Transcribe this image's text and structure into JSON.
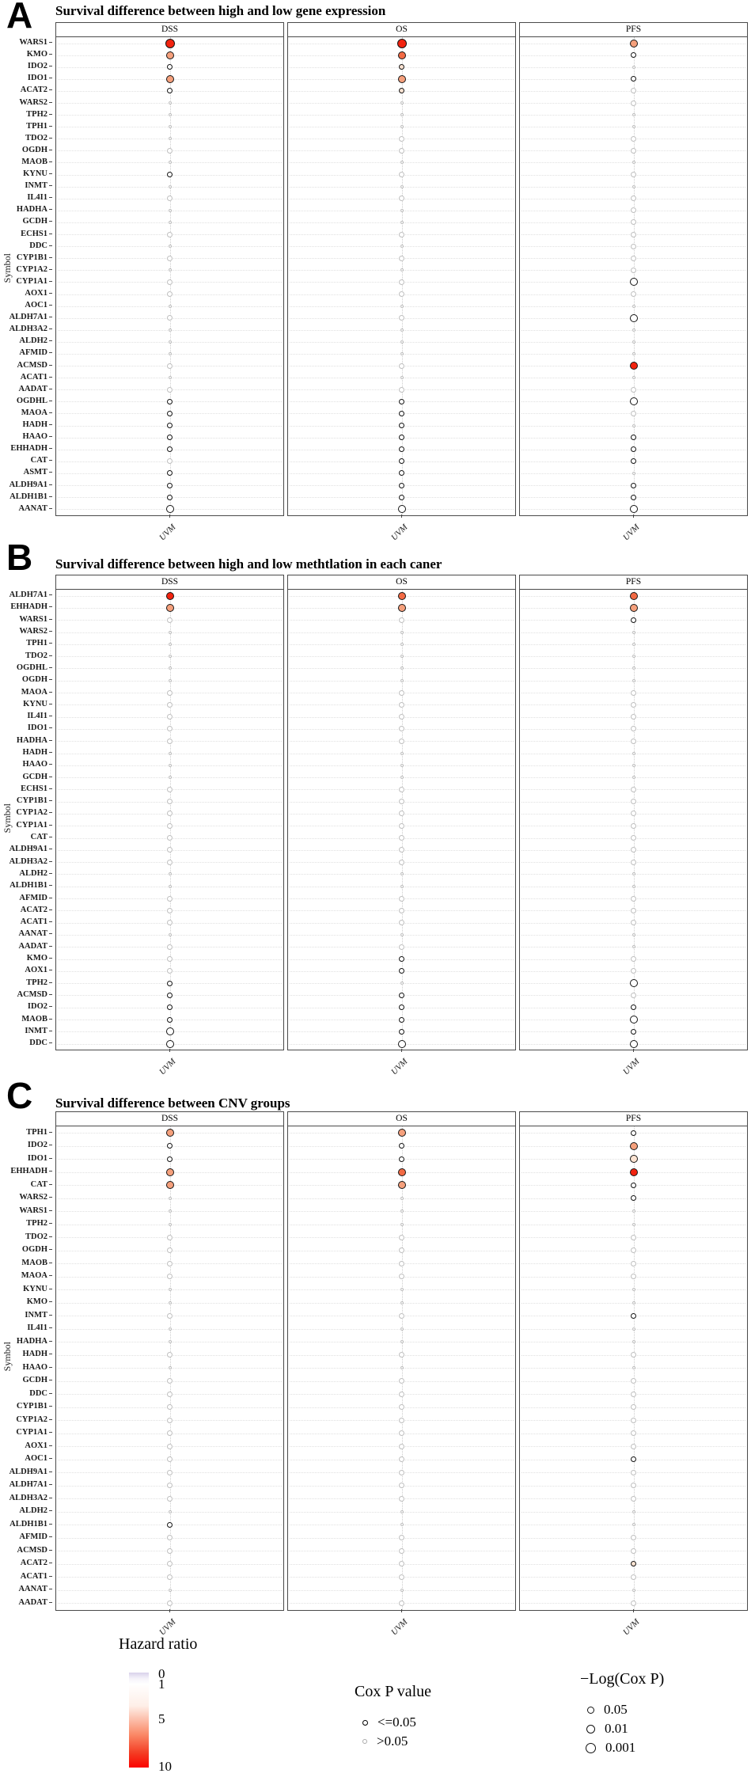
{
  "figure": {
    "palette": {
      "rd": "#F2230F",
      "or": "#F26A44",
      "sa": "#F5A07C",
      "pk": "#FBE3D2",
      "w": "#FFFFFF",
      "ns": "#BFBFBF"
    },
    "size_levels": [
      4,
      7,
      10,
      12
    ],
    "legends": {
      "hazard_ratio": {
        "title": "Hazard ratio",
        "ticks": [
          "0",
          "1",
          "5",
          "10"
        ],
        "gradient_top": "#D9D2EB",
        "gradient_mid": "#FFFFFF",
        "gradient_bottom": "#FB0300"
      },
      "cox_p": {
        "title": "Cox P value",
        "items": [
          {
            "label": "<=0.05",
            "color": "#000000"
          },
          {
            "label": ">0.05",
            "color": "#AAAAAA"
          }
        ]
      },
      "log_cox_p": {
        "title": "−Log(Cox P)",
        "items": [
          {
            "label": "0.05"
          },
          {
            "label": "0.01"
          },
          {
            "label": "0.001"
          }
        ]
      }
    }
  },
  "chart_data": [
    {
      "type": "scatter",
      "panel": "A",
      "title": "Survival difference between high and low gene expression",
      "ylabel": "Symbol",
      "x_ticks": [
        "UVM"
      ],
      "facets": [
        "DSS",
        "OS",
        "PFS"
      ],
      "legend_note": "dot size = -Log(Cox P); dot color = hazard ratio (red high); gray = Cox P > 0.05",
      "genes": [
        "WARS1",
        "KMO",
        "IDO2",
        "IDO1",
        "ACAT2",
        "WARS2",
        "TPH2",
        "TPH1",
        "TDO2",
        "OGDH",
        "MAOB",
        "KYNU",
        "INMT",
        "IL4I1",
        "HADHA",
        "GCDH",
        "ECHS1",
        "DDC",
        "CYP1B1",
        "CYP1A2",
        "CYP1A1",
        "AOX1",
        "AOC1",
        "ALDH7A1",
        "ALDH3A2",
        "ALDH2",
        "AFMID",
        "ACMSD",
        "ACAT1",
        "AADAT",
        "OGDHL",
        "MAOA",
        "HADH",
        "HAAO",
        "EHHADH",
        "CAT",
        "ASMT",
        "ALDH9A1",
        "ALDH1B1",
        "AANAT"
      ],
      "dots": {
        "DSS": [
          "3rd",
          "2sa",
          "1w",
          "2sa",
          "1w",
          "0ns",
          "0ns",
          "0ns",
          "0ns",
          "1ns",
          "0ns",
          "1w",
          "0ns",
          "1ns",
          "0ns",
          "0ns",
          "1ns",
          "0ns",
          "1ns",
          "0ns",
          "1ns",
          "1ns",
          "0ns",
          "1ns",
          "0ns",
          "0ns",
          "0ns",
          "1ns",
          "0ns",
          "1ns",
          "1w",
          "1w",
          "1w",
          "1w",
          "1w",
          "1ns",
          "1w",
          "1w",
          "1w",
          "2w"
        ],
        "OS": [
          "3rd",
          "2or",
          "1pk",
          "2sa",
          "1pk",
          "0ns",
          "0ns",
          "0ns",
          "1ns",
          "1ns",
          "0ns",
          "1ns",
          "0ns",
          "1ns",
          "0ns",
          "0ns",
          "1ns",
          "0ns",
          "1ns",
          "0ns",
          "1ns",
          "1ns",
          "0ns",
          "1ns",
          "0ns",
          "0ns",
          "0ns",
          "1ns",
          "0ns",
          "1ns",
          "1w",
          "1w",
          "1w",
          "1w",
          "1w",
          "1w",
          "1w",
          "1w",
          "1w",
          "2w"
        ],
        "PFS": [
          "2sa",
          "1w",
          "0ns",
          "1w",
          "1ns",
          "1ns",
          "0ns",
          "0ns",
          "1ns",
          "1ns",
          "0ns",
          "1ns",
          "0ns",
          "1ns",
          "1ns",
          "1ns",
          "1ns",
          "1ns",
          "1ns",
          "1ns",
          "2w",
          "1ns",
          "0ns",
          "2w",
          "0ns",
          "0ns",
          "0ns",
          "2rd",
          "0ns",
          "1ns",
          "2w",
          "1ns",
          "0ns",
          "1w",
          "1w",
          "1w",
          "0ns",
          "1w",
          "1w",
          "2w"
        ]
      }
    },
    {
      "type": "scatter",
      "panel": "B",
      "title": "Survival difference between high and low methtlation in each caner",
      "ylabel": "Symbol",
      "x_ticks": [
        "UVM"
      ],
      "facets": [
        "DSS",
        "OS",
        "PFS"
      ],
      "genes": [
        "ALDH7A1",
        "EHHADH",
        "WARS1",
        "WARS2",
        "TPH1",
        "TDO2",
        "OGDHL",
        "OGDH",
        "MAOA",
        "KYNU",
        "IL4I1",
        "IDO1",
        "HADHA",
        "HADH",
        "HAAO",
        "GCDH",
        "ECHS1",
        "CYP1B1",
        "CYP1A2",
        "CYP1A1",
        "CAT",
        "ALDH9A1",
        "ALDH3A2",
        "ALDH2",
        "ALDH1B1",
        "AFMID",
        "ACAT2",
        "ACAT1",
        "AANAT",
        "AADAT",
        "KMO",
        "AOX1",
        "TPH2",
        "ACMSD",
        "IDO2",
        "MAOB",
        "INMT",
        "DDC"
      ],
      "dots": {
        "DSS": [
          "2rd",
          "2sa",
          "1ns",
          "0ns",
          "0ns",
          "0ns",
          "0ns",
          "0ns",
          "1ns",
          "1ns",
          "1ns",
          "1ns",
          "1ns",
          "0ns",
          "0ns",
          "0ns",
          "1ns",
          "1ns",
          "1ns",
          "1ns",
          "1ns",
          "1ns",
          "1ns",
          "0ns",
          "0ns",
          "1ns",
          "1ns",
          "1ns",
          "0ns",
          "1ns",
          "1ns",
          "1ns",
          "1w",
          "1w",
          "1w",
          "1w",
          "2w",
          "2w"
        ],
        "OS": [
          "2or",
          "2sa",
          "1ns",
          "0ns",
          "0ns",
          "0ns",
          "0ns",
          "0ns",
          "1ns",
          "1ns",
          "1ns",
          "1ns",
          "1ns",
          "0ns",
          "0ns",
          "0ns",
          "1ns",
          "1ns",
          "1ns",
          "1ns",
          "1ns",
          "1ns",
          "1ns",
          "0ns",
          "0ns",
          "1ns",
          "1ns",
          "1ns",
          "0ns",
          "1ns",
          "1w",
          "1w",
          "0ns",
          "1w",
          "1w",
          "1w",
          "1w",
          "2w"
        ],
        "PFS": [
          "2or",
          "2sa",
          "1w",
          "0ns",
          "0ns",
          "0ns",
          "0ns",
          "0ns",
          "1ns",
          "1ns",
          "1ns",
          "1ns",
          "1ns",
          "0ns",
          "0ns",
          "0ns",
          "1ns",
          "1ns",
          "1ns",
          "1ns",
          "1ns",
          "1ns",
          "1ns",
          "0ns",
          "0ns",
          "1ns",
          "1ns",
          "1ns",
          "0ns",
          "0ns",
          "1ns",
          "1ns",
          "2w",
          "1ns",
          "1w",
          "2w",
          "1w",
          "2w"
        ]
      }
    },
    {
      "type": "scatter",
      "panel": "C",
      "title": "Survival difference between CNV groups",
      "ylabel": "Symbol",
      "x_ticks": [
        "UVM"
      ],
      "facets": [
        "DSS",
        "OS",
        "PFS"
      ],
      "genes": [
        "TPH1",
        "IDO2",
        "IDO1",
        "EHHADH",
        "CAT",
        "WARS2",
        "WARS1",
        "TPH2",
        "TDO2",
        "OGDH",
        "MAOB",
        "MAOA",
        "KYNU",
        "KMO",
        "INMT",
        "IL4I1",
        "HADHA",
        "HADH",
        "HAAO",
        "GCDH",
        "DDC",
        "CYP1B1",
        "CYP1A2",
        "CYP1A1",
        "AOX1",
        "AOC1",
        "ALDH9A1",
        "ALDH7A1",
        "ALDH3A2",
        "ALDH2",
        "ALDH1B1",
        "AFMID",
        "ACMSD",
        "ACAT2",
        "ACAT1",
        "AANAT",
        "AADAT"
      ],
      "dots": {
        "DSS": [
          "2sa",
          "1w",
          "1w",
          "2sa",
          "2sa",
          "0ns",
          "0ns",
          "0ns",
          "1ns",
          "1ns",
          "1ns",
          "1ns",
          "0ns",
          "0ns",
          "1ns",
          "0ns",
          "0ns",
          "1ns",
          "0ns",
          "1ns",
          "1ns",
          "1ns",
          "1ns",
          "1ns",
          "1ns",
          "1ns",
          "1ns",
          "1ns",
          "1ns",
          "0ns",
          "1w",
          "1ns",
          "1ns",
          "1ns",
          "1ns",
          "0ns",
          "1ns"
        ],
        "OS": [
          "2sa",
          "1w",
          "1w",
          "2or",
          "2sa",
          "0ns",
          "0ns",
          "0ns",
          "1ns",
          "1ns",
          "1ns",
          "1ns",
          "0ns",
          "0ns",
          "1ns",
          "0ns",
          "0ns",
          "1ns",
          "0ns",
          "1ns",
          "1ns",
          "1ns",
          "1ns",
          "1ns",
          "1ns",
          "1ns",
          "1ns",
          "1ns",
          "1ns",
          "0ns",
          "0ns",
          "1ns",
          "1ns",
          "1ns",
          "1ns",
          "0ns",
          "1ns"
        ],
        "PFS": [
          "1w",
          "2sa",
          "2pk",
          "2rd",
          "1w",
          "1w",
          "0ns",
          "0ns",
          "1ns",
          "1ns",
          "1ns",
          "1ns",
          "0ns",
          "0ns",
          "1w",
          "0ns",
          "0ns",
          "1ns",
          "0ns",
          "1ns",
          "1ns",
          "1ns",
          "1ns",
          "1ns",
          "1ns",
          "1w",
          "1ns",
          "1ns",
          "1ns",
          "0ns",
          "0ns",
          "1ns",
          "1ns",
          "1pk",
          "1ns",
          "0ns",
          "1ns"
        ]
      }
    }
  ]
}
